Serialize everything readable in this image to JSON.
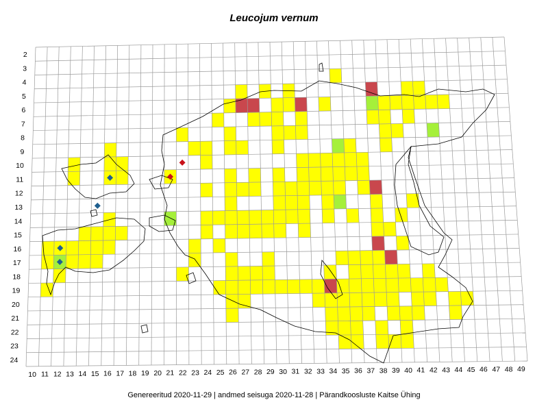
{
  "title": "Leucojum vernum",
  "footer": "Genereeritud 2020-11-29  |  andmed seisuga 2020-11-28  |  Pärandkoosluste Kaitse Ühing",
  "colors": {
    "grid": "#9a9a9a",
    "coast": "#000000",
    "yellow": "#ffff00",
    "red": "#c9474d",
    "green": "#a5f03a",
    "blue_marker": "#1f5f8f",
    "red_marker": "#c8121a"
  },
  "x_axis_labels": [
    "10",
    "11",
    "12",
    "13",
    "14",
    "15",
    "16",
    "17",
    "18",
    "19",
    "20",
    "21",
    "22",
    "23",
    "24",
    "25",
    "26",
    "27",
    "28",
    "29",
    "30",
    "31",
    "32",
    "33",
    "34",
    "35",
    "36",
    "37",
    "38",
    "39",
    "40",
    "41",
    "42",
    "43",
    "44",
    "45",
    "46",
    "47",
    "48",
    "49"
  ],
  "y_axis_labels": [
    "2",
    "3",
    "4",
    "5",
    "6",
    "7",
    "8",
    "9",
    "10",
    "11",
    "12",
    "13",
    "14",
    "15",
    "16",
    "17",
    "18",
    "19",
    "20",
    "21",
    "22",
    "23",
    "24"
  ],
  "cells": [
    {
      "c": 35,
      "r": 4,
      "s": "y"
    },
    {
      "c": 38,
      "r": 5,
      "s": "r"
    },
    {
      "c": 42,
      "r": 5,
      "s": "y"
    },
    {
      "c": 27,
      "r": 5,
      "s": "y"
    },
    {
      "c": 29,
      "r": 5,
      "s": "y"
    },
    {
      "c": 31,
      "r": 5,
      "s": "y"
    },
    {
      "c": 41,
      "r": 5,
      "s": "y"
    },
    {
      "c": 26,
      "r": 6,
      "s": "y"
    },
    {
      "c": 27,
      "r": 6,
      "s": "r"
    },
    {
      "c": 28,
      "r": 6,
      "s": "r"
    },
    {
      "c": 30,
      "r": 6,
      "s": "y"
    },
    {
      "c": 31,
      "r": 6,
      "s": "y"
    },
    {
      "c": 32,
      "r": 6,
      "s": "r"
    },
    {
      "c": 34,
      "r": 6,
      "s": "y"
    },
    {
      "c": 38,
      "r": 6,
      "s": "g"
    },
    {
      "c": 40,
      "r": 6,
      "s": "y"
    },
    {
      "c": 41,
      "r": 6,
      "s": "y"
    },
    {
      "c": 42,
      "r": 6,
      "s": "y"
    },
    {
      "c": 43,
      "r": 6,
      "s": "y"
    },
    {
      "c": 44,
      "r": 6,
      "s": "y"
    },
    {
      "c": 39,
      "r": 6,
      "s": "y"
    },
    {
      "c": 25,
      "r": 7,
      "s": "y"
    },
    {
      "c": 28,
      "r": 7,
      "s": "y"
    },
    {
      "c": 29,
      "r": 7,
      "s": "y"
    },
    {
      "c": 30,
      "r": 7,
      "s": "y"
    },
    {
      "c": 32,
      "r": 7,
      "s": "y"
    },
    {
      "c": 38,
      "r": 7,
      "s": "y"
    },
    {
      "c": 39,
      "r": 7,
      "s": "y"
    },
    {
      "c": 41,
      "r": 7,
      "s": "y"
    },
    {
      "c": 22,
      "r": 8,
      "s": "y"
    },
    {
      "c": 26,
      "r": 8,
      "s": "y"
    },
    {
      "c": 30,
      "r": 8,
      "s": "y"
    },
    {
      "c": 31,
      "r": 8,
      "s": "y"
    },
    {
      "c": 32,
      "r": 8,
      "s": "y"
    },
    {
      "c": 39,
      "r": 8,
      "s": "y"
    },
    {
      "c": 40,
      "r": 8,
      "s": "y"
    },
    {
      "c": 43,
      "r": 8,
      "s": "g"
    },
    {
      "c": 23,
      "r": 9,
      "s": "y"
    },
    {
      "c": 24,
      "r": 9,
      "s": "y"
    },
    {
      "c": 26,
      "r": 9,
      "s": "y"
    },
    {
      "c": 27,
      "r": 9,
      "s": "y"
    },
    {
      "c": 30,
      "r": 9,
      "s": "y"
    },
    {
      "c": 35,
      "r": 9,
      "s": "g"
    },
    {
      "c": 36,
      "r": 9,
      "s": "y"
    },
    {
      "c": 39,
      "r": 9,
      "s": "y"
    },
    {
      "c": 16,
      "r": 9,
      "s": "y"
    },
    {
      "c": 13,
      "r": 10,
      "s": "y"
    },
    {
      "c": 16,
      "r": 10,
      "s": "y"
    },
    {
      "c": 17,
      "r": 10,
      "s": "y"
    },
    {
      "c": 24,
      "r": 10,
      "s": "y"
    },
    {
      "c": 32,
      "r": 10,
      "s": "y"
    },
    {
      "c": 33,
      "r": 10,
      "s": "y"
    },
    {
      "c": 34,
      "r": 10,
      "s": "y"
    },
    {
      "c": 35,
      "r": 10,
      "s": "y"
    },
    {
      "c": 36,
      "r": 10,
      "s": "y"
    },
    {
      "c": 37,
      "r": 10,
      "s": "y"
    },
    {
      "c": 13,
      "r": 11,
      "s": "y"
    },
    {
      "c": 16,
      "r": 11,
      "s": "y"
    },
    {
      "c": 17,
      "r": 11,
      "s": "y"
    },
    {
      "c": 21,
      "r": 11,
      "s": "y"
    },
    {
      "c": 26,
      "r": 11,
      "s": "y"
    },
    {
      "c": 28,
      "r": 11,
      "s": "y"
    },
    {
      "c": 30,
      "r": 11,
      "s": "y"
    },
    {
      "c": 32,
      "r": 11,
      "s": "y"
    },
    {
      "c": 33,
      "r": 11,
      "s": "y"
    },
    {
      "c": 34,
      "r": 11,
      "s": "y"
    },
    {
      "c": 35,
      "r": 11,
      "s": "y"
    },
    {
      "c": 36,
      "r": 11,
      "s": "y"
    },
    {
      "c": 37,
      "r": 11,
      "s": "y"
    },
    {
      "c": 24,
      "r": 12,
      "s": "y"
    },
    {
      "c": 26,
      "r": 12,
      "s": "y"
    },
    {
      "c": 27,
      "r": 12,
      "s": "y"
    },
    {
      "c": 28,
      "r": 12,
      "s": "y"
    },
    {
      "c": 30,
      "r": 12,
      "s": "y"
    },
    {
      "c": 31,
      "r": 12,
      "s": "y"
    },
    {
      "c": 32,
      "r": 12,
      "s": "y"
    },
    {
      "c": 33,
      "r": 12,
      "s": "y"
    },
    {
      "c": 34,
      "r": 12,
      "s": "y"
    },
    {
      "c": 35,
      "r": 12,
      "s": "y"
    },
    {
      "c": 37,
      "r": 12,
      "s": "y"
    },
    {
      "c": 38,
      "r": 12,
      "s": "r"
    },
    {
      "c": 26,
      "r": 13,
      "s": "y"
    },
    {
      "c": 30,
      "r": 13,
      "s": "y"
    },
    {
      "c": 31,
      "r": 13,
      "s": "y"
    },
    {
      "c": 32,
      "r": 13,
      "s": "y"
    },
    {
      "c": 34,
      "r": 13,
      "s": "y"
    },
    {
      "c": 35,
      "r": 13,
      "s": "g"
    },
    {
      "c": 38,
      "r": 13,
      "s": "y"
    },
    {
      "c": 41,
      "r": 13,
      "s": "y"
    },
    {
      "c": 16,
      "r": 14,
      "s": "y"
    },
    {
      "c": 21,
      "r": 14,
      "s": "g"
    },
    {
      "c": 24,
      "r": 14,
      "s": "y"
    },
    {
      "c": 25,
      "r": 14,
      "s": "y"
    },
    {
      "c": 26,
      "r": 14,
      "s": "y"
    },
    {
      "c": 27,
      "r": 14,
      "s": "y"
    },
    {
      "c": 28,
      "r": 14,
      "s": "y"
    },
    {
      "c": 29,
      "r": 14,
      "s": "y"
    },
    {
      "c": 30,
      "r": 14,
      "s": "y"
    },
    {
      "c": 31,
      "r": 14,
      "s": "y"
    },
    {
      "c": 32,
      "r": 14,
      "s": "y"
    },
    {
      "c": 34,
      "r": 14,
      "s": "y"
    },
    {
      "c": 36,
      "r": 14,
      "s": "y"
    },
    {
      "c": 38,
      "r": 14,
      "s": "y"
    },
    {
      "c": 40,
      "r": 14,
      "s": "y"
    },
    {
      "c": 14,
      "r": 15,
      "s": "y"
    },
    {
      "c": 15,
      "r": 15,
      "s": "y"
    },
    {
      "c": 16,
      "r": 15,
      "s": "y"
    },
    {
      "c": 17,
      "r": 15,
      "s": "y"
    },
    {
      "c": 24,
      "r": 15,
      "s": "y"
    },
    {
      "c": 26,
      "r": 15,
      "s": "y"
    },
    {
      "c": 27,
      "r": 15,
      "s": "y"
    },
    {
      "c": 28,
      "r": 15,
      "s": "y"
    },
    {
      "c": 29,
      "r": 15,
      "s": "y"
    },
    {
      "c": 30,
      "r": 15,
      "s": "y"
    },
    {
      "c": 32,
      "r": 15,
      "s": "y"
    },
    {
      "c": 38,
      "r": 15,
      "s": "y"
    },
    {
      "c": 39,
      "r": 15,
      "s": "y"
    },
    {
      "c": 11,
      "r": 16,
      "s": "y"
    },
    {
      "c": 12,
      "r": 16,
      "s": "y"
    },
    {
      "c": 13,
      "r": 16,
      "s": "y"
    },
    {
      "c": 14,
      "r": 16,
      "s": "y"
    },
    {
      "c": 15,
      "r": 16,
      "s": "y"
    },
    {
      "c": 16,
      "r": 16,
      "s": "y"
    },
    {
      "c": 23,
      "r": 16,
      "s": "y"
    },
    {
      "c": 25,
      "r": 16,
      "s": "y"
    },
    {
      "c": 38,
      "r": 16,
      "s": "r"
    },
    {
      "c": 40,
      "r": 16,
      "s": "y"
    },
    {
      "c": 11,
      "r": 17,
      "s": "y"
    },
    {
      "c": 12,
      "r": 17,
      "s": "g"
    },
    {
      "c": 13,
      "r": 17,
      "s": "y"
    },
    {
      "c": 14,
      "r": 17,
      "s": "y"
    },
    {
      "c": 15,
      "r": 17,
      "s": "y"
    },
    {
      "c": 23,
      "r": 17,
      "s": "y"
    },
    {
      "c": 26,
      "r": 17,
      "s": "y"
    },
    {
      "c": 29,
      "r": 17,
      "s": "y"
    },
    {
      "c": 35,
      "r": 17,
      "s": "y"
    },
    {
      "c": 36,
      "r": 17,
      "s": "y"
    },
    {
      "c": 37,
      "r": 17,
      "s": "y"
    },
    {
      "c": 38,
      "r": 17,
      "s": "y"
    },
    {
      "c": 39,
      "r": 17,
      "s": "r"
    },
    {
      "c": 12,
      "r": 18,
      "s": "y"
    },
    {
      "c": 22,
      "r": 18,
      "s": "y"
    },
    {
      "c": 26,
      "r": 18,
      "s": "y"
    },
    {
      "c": 27,
      "r": 18,
      "s": "y"
    },
    {
      "c": 28,
      "r": 18,
      "s": "y"
    },
    {
      "c": 29,
      "r": 18,
      "s": "y"
    },
    {
      "c": 34,
      "r": 18,
      "s": "y"
    },
    {
      "c": 36,
      "r": 18,
      "s": "y"
    },
    {
      "c": 37,
      "r": 18,
      "s": "y"
    },
    {
      "c": 38,
      "r": 18,
      "s": "y"
    },
    {
      "c": 39,
      "r": 18,
      "s": "y"
    },
    {
      "c": 40,
      "r": 18,
      "s": "y"
    },
    {
      "c": 42,
      "r": 18,
      "s": "y"
    },
    {
      "c": 11,
      "r": 19,
      "s": "y"
    },
    {
      "c": 25,
      "r": 19,
      "s": "y"
    },
    {
      "c": 26,
      "r": 19,
      "s": "y"
    },
    {
      "c": 27,
      "r": 19,
      "s": "y"
    },
    {
      "c": 28,
      "r": 19,
      "s": "y"
    },
    {
      "c": 29,
      "r": 19,
      "s": "y"
    },
    {
      "c": 30,
      "r": 19,
      "s": "y"
    },
    {
      "c": 31,
      "r": 19,
      "s": "y"
    },
    {
      "c": 32,
      "r": 19,
      "s": "y"
    },
    {
      "c": 33,
      "r": 19,
      "s": "y"
    },
    {
      "c": 34,
      "r": 19,
      "s": "r"
    },
    {
      "c": 35,
      "r": 19,
      "s": "y"
    },
    {
      "c": 36,
      "r": 19,
      "s": "y"
    },
    {
      "c": 37,
      "r": 19,
      "s": "y"
    },
    {
      "c": 38,
      "r": 19,
      "s": "y"
    },
    {
      "c": 39,
      "r": 19,
      "s": "y"
    },
    {
      "c": 40,
      "r": 19,
      "s": "y"
    },
    {
      "c": 41,
      "r": 19,
      "s": "y"
    },
    {
      "c": 42,
      "r": 19,
      "s": "y"
    },
    {
      "c": 43,
      "r": 19,
      "s": "y"
    },
    {
      "c": 26,
      "r": 20,
      "s": "y"
    },
    {
      "c": 27,
      "r": 20,
      "s": "y"
    },
    {
      "c": 33,
      "r": 20,
      "s": "y"
    },
    {
      "c": 34,
      "r": 20,
      "s": "y"
    },
    {
      "c": 35,
      "r": 20,
      "s": "y"
    },
    {
      "c": 36,
      "r": 20,
      "s": "y"
    },
    {
      "c": 37,
      "r": 20,
      "s": "y"
    },
    {
      "c": 38,
      "r": 20,
      "s": "y"
    },
    {
      "c": 39,
      "r": 20,
      "s": "y"
    },
    {
      "c": 41,
      "r": 20,
      "s": "y"
    },
    {
      "c": 42,
      "r": 20,
      "s": "y"
    },
    {
      "c": 44,
      "r": 20,
      "s": "y"
    },
    {
      "c": 45,
      "r": 20,
      "s": "y"
    },
    {
      "c": 26,
      "r": 21,
      "s": "y"
    },
    {
      "c": 34,
      "r": 21,
      "s": "y"
    },
    {
      "c": 35,
      "r": 21,
      "s": "y"
    },
    {
      "c": 36,
      "r": 21,
      "s": "y"
    },
    {
      "c": 37,
      "r": 21,
      "s": "y"
    },
    {
      "c": 39,
      "r": 21,
      "s": "y"
    },
    {
      "c": 40,
      "r": 21,
      "s": "y"
    },
    {
      "c": 41,
      "r": 21,
      "s": "y"
    },
    {
      "c": 44,
      "r": 21,
      "s": "y"
    },
    {
      "c": 34,
      "r": 22,
      "s": "y"
    },
    {
      "c": 35,
      "r": 22,
      "s": "y"
    },
    {
      "c": 36,
      "r": 22,
      "s": "y"
    },
    {
      "c": 38,
      "r": 22,
      "s": "y"
    },
    {
      "c": 40,
      "r": 22,
      "s": "y"
    },
    {
      "c": 35,
      "r": 23,
      "s": "y"
    },
    {
      "c": 36,
      "r": 23,
      "s": "y"
    },
    {
      "c": 38,
      "r": 23,
      "s": "y"
    },
    {
      "c": 39,
      "r": 23,
      "s": "y"
    },
    {
      "c": 40,
      "r": 23,
      "s": "y"
    }
  ],
  "markers": [
    {
      "c": 16,
      "r": 11,
      "type": "blue"
    },
    {
      "c": 15,
      "r": 13,
      "type": "blue"
    },
    {
      "c": 12,
      "r": 16,
      "type": "blue"
    },
    {
      "c": 12,
      "r": 17,
      "type": "blue"
    },
    {
      "c": 22,
      "r": 10,
      "type": "red"
    },
    {
      "c": 21,
      "r": 11,
      "type": "red"
    }
  ]
}
